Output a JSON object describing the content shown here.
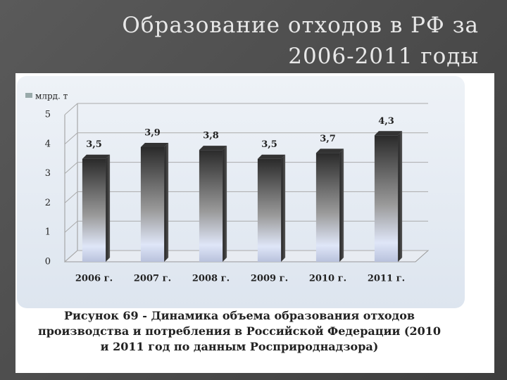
{
  "chart_data": {
    "type": "bar",
    "title": "Образование отходов в РФ за 2006-2011 годы",
    "y_label": "млрд. т",
    "categories": [
      "2006 г.",
      "2007 г.",
      "2008 г.",
      "2009 г.",
      "2010 г.",
      "2011 г."
    ],
    "values": [
      3.5,
      3.9,
      3.8,
      3.5,
      3.7,
      4.3
    ],
    "value_labels": [
      "3,5",
      "3,9",
      "3,8",
      "3,5",
      "3,7",
      "4,3"
    ],
    "ylim": [
      0,
      5
    ],
    "yticks": [
      0,
      1,
      2,
      3,
      4,
      5
    ],
    "grid": true,
    "caption": "Рисунок 69 - Динамика объема образования отходов производства и потребления в Российской Федерации (2010 и 2011 год по данным Росприроднадзора)"
  }
}
